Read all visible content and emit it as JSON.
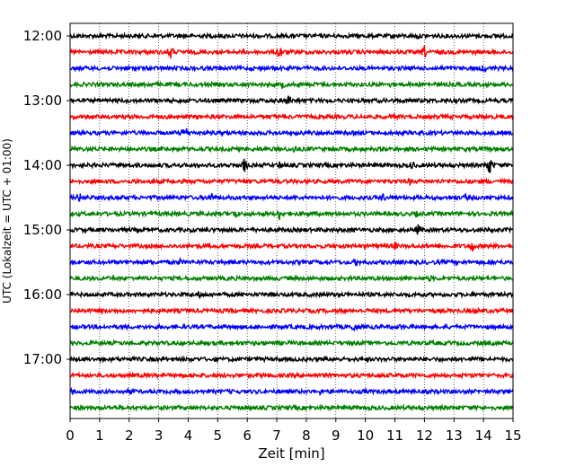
{
  "chart_data": {
    "type": "line",
    "title": "",
    "xlabel": "Zeit  [min]",
    "ylabel": "UTC (Lokalzeit = UTC + 01:00)",
    "xlim": [
      0,
      15
    ],
    "x_ticks": [
      "0",
      "1",
      "2",
      "3",
      "4",
      "5",
      "6",
      "7",
      "8",
      "9",
      "10",
      "11",
      "12",
      "13",
      "14",
      "15"
    ],
    "y_ticks": [
      "12:00",
      "13:00",
      "14:00",
      "15:00",
      "16:00",
      "17:00"
    ],
    "grid": "vertical dotted lines at each minute",
    "trace_interval_minutes": 15,
    "trace_start_times": [
      "12:00",
      "12:15",
      "12:30",
      "12:45",
      "13:00",
      "13:15",
      "13:30",
      "13:45",
      "14:00",
      "14:15",
      "14:30",
      "14:45",
      "15:00",
      "15:15",
      "15:30",
      "15:45",
      "16:00",
      "16:15",
      "16:30",
      "16:45",
      "17:00",
      "17:15",
      "17:30",
      "17:45"
    ],
    "trace_colors": [
      "#000000",
      "#ff0000",
      "#0000ff",
      "#008000"
    ],
    "events": [
      {
        "trace": 1,
        "x": 3.4,
        "amp": 9
      },
      {
        "trace": 1,
        "x": 7.1,
        "amp": 10
      },
      {
        "trace": 1,
        "x": 12.0,
        "amp": 8
      },
      {
        "trace": 0,
        "x": 11.8,
        "amp": 4
      },
      {
        "trace": 2,
        "x": 14.0,
        "amp": 6
      },
      {
        "trace": 3,
        "x": 2.6,
        "amp": 5
      },
      {
        "trace": 3,
        "x": 7.2,
        "amp": 6
      },
      {
        "trace": 3,
        "x": 10.9,
        "amp": 5
      },
      {
        "trace": 4,
        "x": 7.4,
        "amp": 8
      },
      {
        "trace": 5,
        "x": 2.0,
        "amp": 4
      },
      {
        "trace": 5,
        "x": 4.3,
        "amp": 4
      },
      {
        "trace": 6,
        "x": 3.9,
        "amp": 9
      },
      {
        "trace": 7,
        "x": 7.6,
        "amp": 6
      },
      {
        "trace": 8,
        "x": 5.9,
        "amp": 9
      },
      {
        "trace": 8,
        "x": 7.1,
        "amp": 6
      },
      {
        "trace": 8,
        "x": 11.6,
        "amp": 6
      },
      {
        "trace": 8,
        "x": 14.2,
        "amp": 12
      },
      {
        "trace": 9,
        "x": 2.2,
        "amp": 4
      },
      {
        "trace": 9,
        "x": 11.5,
        "amp": 5
      },
      {
        "trace": 9,
        "x": 12.5,
        "amp": 4
      },
      {
        "trace": 10,
        "x": 0.3,
        "amp": 7
      },
      {
        "trace": 10,
        "x": 4.8,
        "amp": 7
      },
      {
        "trace": 10,
        "x": 10.6,
        "amp": 6
      },
      {
        "trace": 10,
        "x": 13.4,
        "amp": 5
      },
      {
        "trace": 11,
        "x": 5.6,
        "amp": 7
      },
      {
        "trace": 11,
        "x": 7.1,
        "amp": 8
      },
      {
        "trace": 11,
        "x": 11.7,
        "amp": 5
      },
      {
        "trace": 12,
        "x": 11.8,
        "amp": 8
      },
      {
        "trace": 12,
        "x": 5.2,
        "amp": 4
      },
      {
        "trace": 13,
        "x": 11.0,
        "amp": 6
      },
      {
        "trace": 13,
        "x": 13.6,
        "amp": 8
      },
      {
        "trace": 14,
        "x": 2.8,
        "amp": 5
      },
      {
        "trace": 14,
        "x": 3.7,
        "amp": 5
      },
      {
        "trace": 14,
        "x": 9.7,
        "amp": 6
      },
      {
        "trace": 15,
        "x": 12.2,
        "amp": 4
      },
      {
        "trace": 16,
        "x": 4.4,
        "amp": 6
      },
      {
        "trace": 16,
        "x": 6.6,
        "amp": 4
      },
      {
        "trace": 17,
        "x": 13.7,
        "amp": 4
      },
      {
        "trace": 18,
        "x": 9.6,
        "amp": 7
      },
      {
        "trace": 18,
        "x": 11.2,
        "amp": 4
      },
      {
        "trace": 21,
        "x": 13.3,
        "amp": 4
      },
      {
        "trace": 22,
        "x": 2.1,
        "amp": 5
      },
      {
        "trace": 22,
        "x": 8.5,
        "amp": 5
      },
      {
        "trace": 22,
        "x": 0.1,
        "amp": 5
      }
    ]
  }
}
